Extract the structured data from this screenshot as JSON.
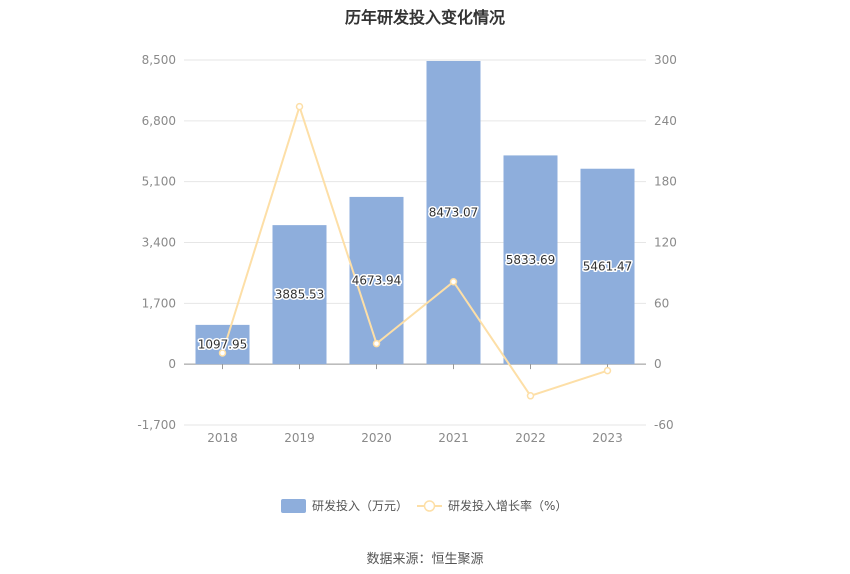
{
  "title": "历年研发投入变化情况",
  "source": "数据来源：恒生聚源",
  "colors": {
    "bar": "#8eaedc",
    "line": "#fddfa7",
    "grid": "#e6e6e6",
    "axis": "#cccccc"
  },
  "chart_data": {
    "type": "bar",
    "title": "历年研发投入变化情况",
    "categories": [
      "2018",
      "2019",
      "2020",
      "2021",
      "2022",
      "2023"
    ],
    "series": [
      {
        "name": "研发投入（万元）",
        "type": "bar",
        "axis": "left",
        "values": [
          1097.95,
          3885.53,
          4673.94,
          8473.07,
          5833.69,
          5461.47
        ],
        "labels": [
          "1097.95",
          "3885.53",
          "4673.94",
          "8473.07",
          "5833.69",
          "5461.47"
        ]
      },
      {
        "name": "研发投入增长率（%）",
        "type": "line",
        "axis": "right",
        "values": [
          11,
          254,
          20.3,
          81.3,
          -31.2,
          -6.4
        ]
      }
    ],
    "y_left": {
      "ylim": [
        -1700,
        8500
      ],
      "ticks": [
        "-1,700",
        "0",
        "1,700",
        "3,400",
        "5,100",
        "6,800",
        "8,500"
      ]
    },
    "y_right": {
      "ylim": [
        -60,
        300
      ],
      "ticks": [
        "-60",
        "0",
        "60",
        "120",
        "180",
        "240",
        "300"
      ]
    },
    "grid": true,
    "legend": "bottom-center"
  }
}
